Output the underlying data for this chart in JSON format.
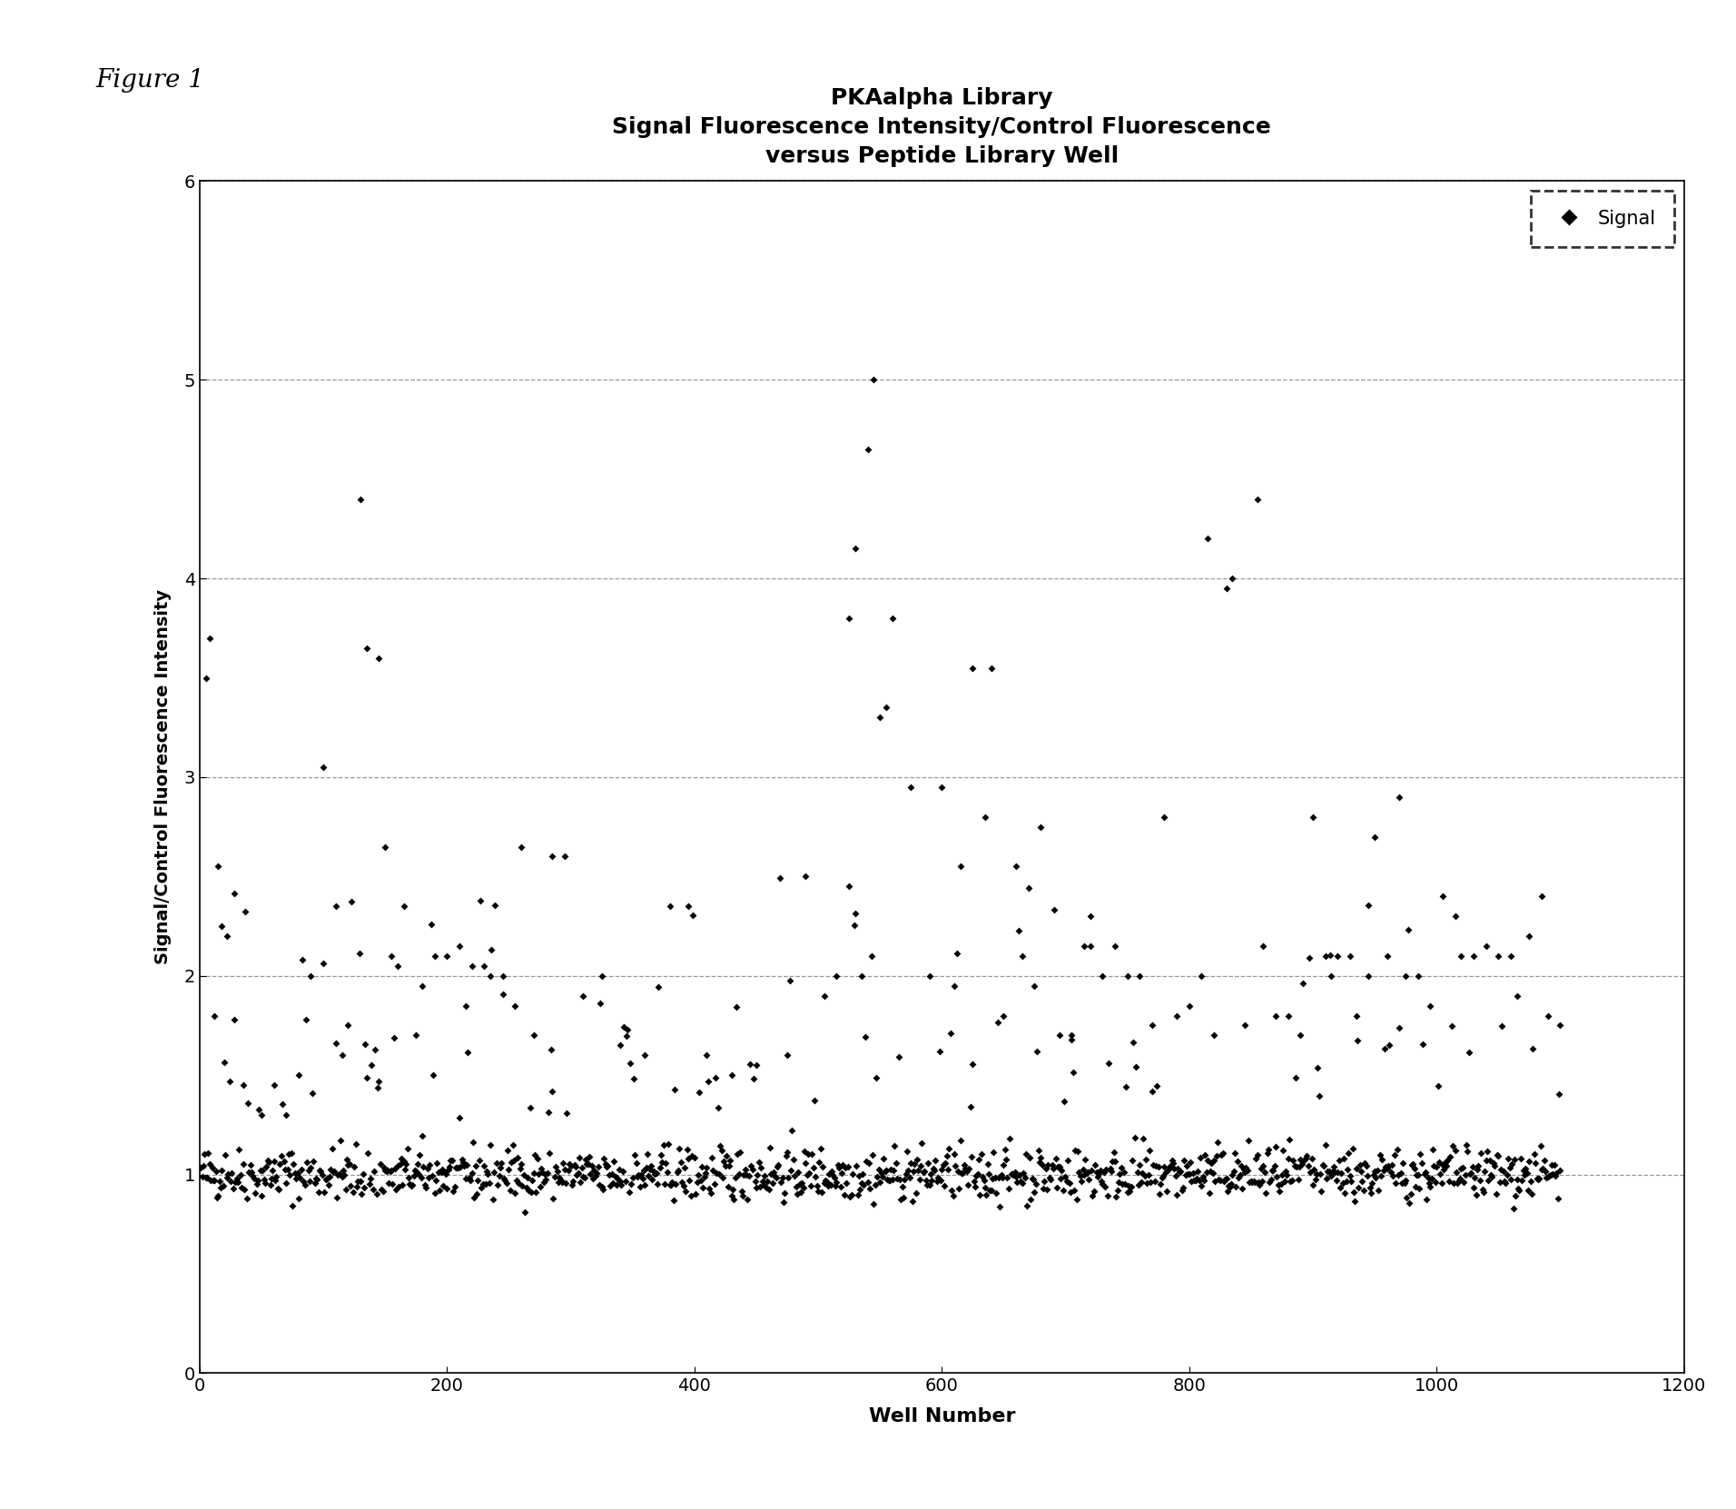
{
  "title_line1": "PKAalpha Library",
  "title_line2": "Signal Fluorescence Intensity/Control Fluorescence",
  "title_line3": "versus Peptide Library Well",
  "xlabel": "Well Number",
  "ylabel": "Signal/Control Fluorescence Intensity",
  "legend_label": "Signal",
  "xlim": [
    0,
    1200
  ],
  "ylim": [
    0,
    6
  ],
  "xticks": [
    0,
    200,
    400,
    600,
    800,
    1000,
    1200
  ],
  "yticks": [
    0,
    1,
    2,
    3,
    4,
    5,
    6
  ],
  "marker_color": "black",
  "marker": "D",
  "marker_size": 4,
  "fig_width": 19.12,
  "fig_height": 16.62,
  "dpi": 100,
  "figure_label": "Figure 1",
  "seed": 42,
  "manual_x": [
    5,
    8,
    12,
    15,
    18,
    22,
    28,
    35,
    50,
    60,
    70,
    80,
    90,
    100,
    110,
    115,
    120,
    130,
    135,
    145,
    150,
    155,
    160,
    165,
    175,
    180,
    190,
    200,
    210,
    215,
    220,
    230,
    235,
    245,
    255,
    260,
    270,
    285,
    295,
    310,
    325,
    340,
    360,
    380,
    395,
    410,
    430,
    450,
    475,
    490,
    505,
    515,
    525,
    530,
    535,
    540,
    545,
    550,
    555,
    560,
    575,
    590,
    600,
    610,
    615,
    625,
    635,
    640,
    650,
    660,
    665,
    675,
    680,
    695,
    705,
    715,
    720,
    730,
    740,
    750,
    760,
    770,
    780,
    790,
    800,
    810,
    815,
    820,
    830,
    835,
    845,
    855,
    860,
    870,
    880,
    890,
    900,
    910,
    915,
    920,
    930,
    935,
    945,
    950,
    960,
    970,
    975,
    985,
    995,
    1005,
    1015,
    1020,
    1030,
    1040,
    1050,
    1060,
    1065,
    1075,
    1085,
    1090,
    1100
  ],
  "manual_y": [
    3.5,
    3.7,
    1.8,
    2.55,
    2.25,
    2.2,
    1.78,
    1.45,
    1.3,
    1.45,
    1.3,
    1.5,
    2.0,
    3.05,
    2.35,
    1.6,
    1.75,
    4.4,
    3.65,
    3.6,
    2.65,
    2.1,
    2.05,
    2.35,
    1.7,
    1.95,
    2.1,
    2.1,
    2.15,
    1.85,
    2.05,
    2.05,
    2.0,
    2.0,
    1.85,
    2.65,
    1.7,
    2.6,
    2.6,
    1.9,
    2.0,
    1.65,
    1.6,
    2.35,
    2.35,
    1.6,
    1.5,
    1.55,
    1.6,
    2.5,
    1.9,
    2.0,
    3.8,
    4.15,
    2.0,
    4.65,
    5.0,
    3.3,
    3.35,
    3.8,
    2.95,
    2.0,
    2.95,
    1.95,
    2.55,
    3.55,
    2.8,
    3.55,
    1.8,
    2.55,
    2.1,
    1.95,
    2.75,
    1.7,
    1.7,
    2.15,
    2.15,
    2.0,
    2.15,
    2.0,
    2.0,
    1.75,
    2.8,
    1.8,
    1.85,
    2.0,
    4.2,
    1.7,
    3.95,
    4.0,
    1.75,
    4.4,
    2.15,
    1.8,
    1.8,
    1.7,
    2.8,
    2.1,
    2.0,
    2.1,
    2.1,
    1.8,
    2.0,
    2.7,
    2.1,
    2.9,
    2.0,
    2.0,
    1.85,
    2.4,
    2.3,
    2.1,
    2.1,
    2.15,
    2.1,
    2.1,
    1.9,
    2.2,
    2.4,
    1.8,
    1.75
  ]
}
